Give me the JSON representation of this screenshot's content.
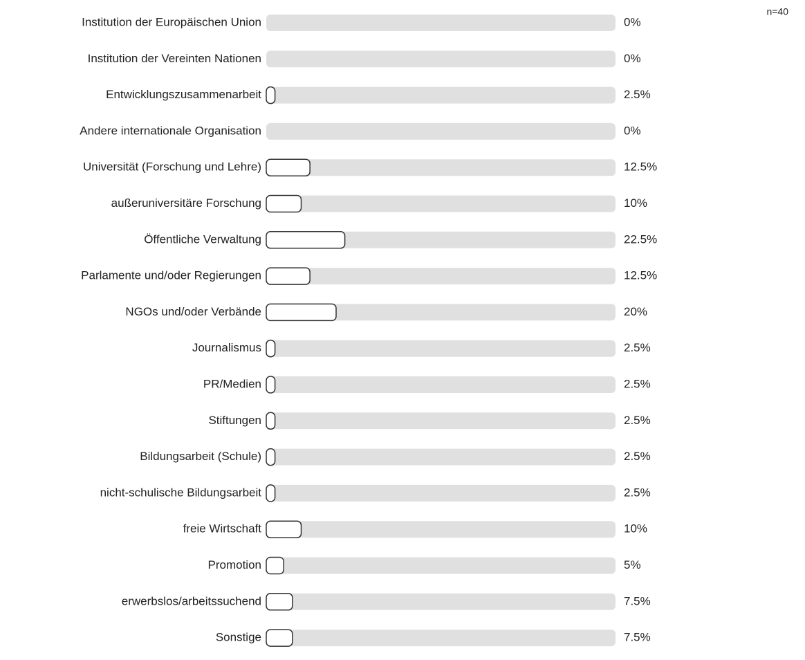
{
  "chart_data": {
    "type": "hbar",
    "annotation": "n=40",
    "categories": [
      "Institution der Europäischen Union",
      "Institution der Vereinten Nationen",
      "Entwicklungszusammenarbeit",
      "Andere internationale Organisation",
      "Universität (Forschung und Lehre)",
      "außeruniversitäre Forschung",
      "Öffentliche Verwaltung",
      "Parlamente und/oder Regierungen",
      "NGOs und/oder Verbände",
      "Journalismus",
      "PR/Medien",
      "Stiftungen",
      "Bildungsarbeit (Schule)",
      "nicht-schulische Bildungsarbeit",
      "freie Wirtschaft",
      "Promotion",
      "erwerbslos/arbeitssuchend",
      "Sonstige"
    ],
    "values": [
      0,
      0,
      2.5,
      0,
      12.5,
      10,
      22.5,
      12.5,
      20,
      2.5,
      2.5,
      2.5,
      2.5,
      2.5,
      10,
      5,
      7.5,
      7.5
    ],
    "value_labels": [
      "0%",
      "0%",
      "2.5%",
      "0%",
      "12.5%",
      "10%",
      "22.5%",
      "12.5%",
      "20%",
      "2.5%",
      "2.5%",
      "2.5%",
      "2.5%",
      "2.5%",
      "10%",
      "5%",
      "7.5%",
      "7.5%"
    ],
    "xlim": [
      0,
      100
    ],
    "color": "#ffffff",
    "track_color": "#e0e0e0"
  }
}
